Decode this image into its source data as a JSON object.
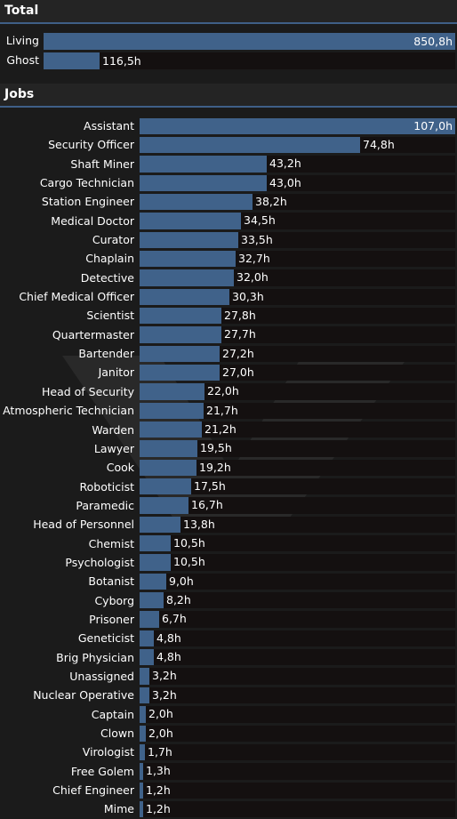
{
  "colors": {
    "bar_fill": "#40628a",
    "bar_track": "#141010",
    "background": "#1b1b1b",
    "header_bg": "#242424",
    "header_rule": "#3f5f87"
  },
  "total": {
    "title": "Total",
    "chart_data": {
      "type": "bar",
      "orientation": "horizontal",
      "categories": [
        "Living",
        "Ghost"
      ],
      "values": [
        850.8,
        116.5
      ],
      "value_labels": [
        "850,8h",
        "116,5h"
      ],
      "xlim": [
        0,
        850.8
      ]
    }
  },
  "jobs": {
    "title": "Jobs",
    "chart_data": {
      "type": "bar",
      "orientation": "horizontal",
      "categories": [
        "Assistant",
        "Security Officer",
        "Shaft Miner",
        "Cargo Technician",
        "Station Engineer",
        "Medical Doctor",
        "Curator",
        "Chaplain",
        "Detective",
        "Chief Medical Officer",
        "Scientist",
        "Quartermaster",
        "Bartender",
        "Janitor",
        "Head of Security",
        "Atmospheric Technician",
        "Warden",
        "Lawyer",
        "Cook",
        "Roboticist",
        "Paramedic",
        "Head of Personnel",
        "Chemist",
        "Psychologist",
        "Botanist",
        "Cyborg",
        "Prisoner",
        "Geneticist",
        "Brig Physician",
        "Unassigned",
        "Nuclear Operative",
        "Captain",
        "Clown",
        "Virologist",
        "Free Golem",
        "Chief Engineer",
        "Mime"
      ],
      "values": [
        107.0,
        74.8,
        43.2,
        43.0,
        38.2,
        34.5,
        33.5,
        32.7,
        32.0,
        30.3,
        27.8,
        27.7,
        27.2,
        27.0,
        22.0,
        21.7,
        21.2,
        19.5,
        19.2,
        17.5,
        16.7,
        13.8,
        10.5,
        10.5,
        9.0,
        8.2,
        6.7,
        4.8,
        4.8,
        3.2,
        3.2,
        2.0,
        2.0,
        1.7,
        1.3,
        1.2,
        1.2
      ],
      "value_labels": [
        "107,0h",
        "74,8h",
        "43,2h",
        "43,0h",
        "38,2h",
        "34,5h",
        "33,5h",
        "32,7h",
        "32,0h",
        "30,3h",
        "27,8h",
        "27,7h",
        "27,2h",
        "27,0h",
        "22,0h",
        "21,7h",
        "21,2h",
        "19,5h",
        "19,2h",
        "17,5h",
        "16,7h",
        "13,8h",
        "10,5h",
        "10,5h",
        "9,0h",
        "8,2h",
        "6,7h",
        "4,8h",
        "4,8h",
        "3,2h",
        "3,2h",
        "2,0h",
        "2,0h",
        "1,7h",
        "1,3h",
        "1,2h",
        "1,2h"
      ],
      "xlim": [
        0,
        107.0
      ]
    }
  }
}
